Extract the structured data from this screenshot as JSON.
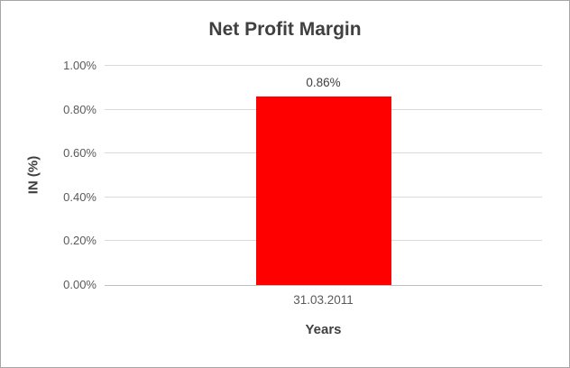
{
  "chart_data": {
    "type": "bar",
    "title": "Net Profit Margin",
    "xlabel": "Years",
    "ylabel": "IN (%)",
    "categories": [
      "31.03.2011"
    ],
    "values": [
      0.86
    ],
    "data_labels": [
      "0.86%"
    ],
    "ylim": [
      0,
      1.0
    ],
    "ytick_values": [
      0,
      0.2,
      0.4,
      0.6,
      0.8,
      1.0
    ],
    "ytick_labels": [
      "0.00%",
      "0.20%",
      "0.40%",
      "0.60%",
      "0.80%",
      "1.00%"
    ],
    "grid": true,
    "legend": "none",
    "colors": {
      "bar": "#FF0000",
      "gridline": "#D9D9D9",
      "axis_line": "#BFBFBF",
      "tick_text": "#595959",
      "title_text": "#404040",
      "frame_border": "#A6A6A6",
      "background": "#FFFFFF"
    }
  }
}
